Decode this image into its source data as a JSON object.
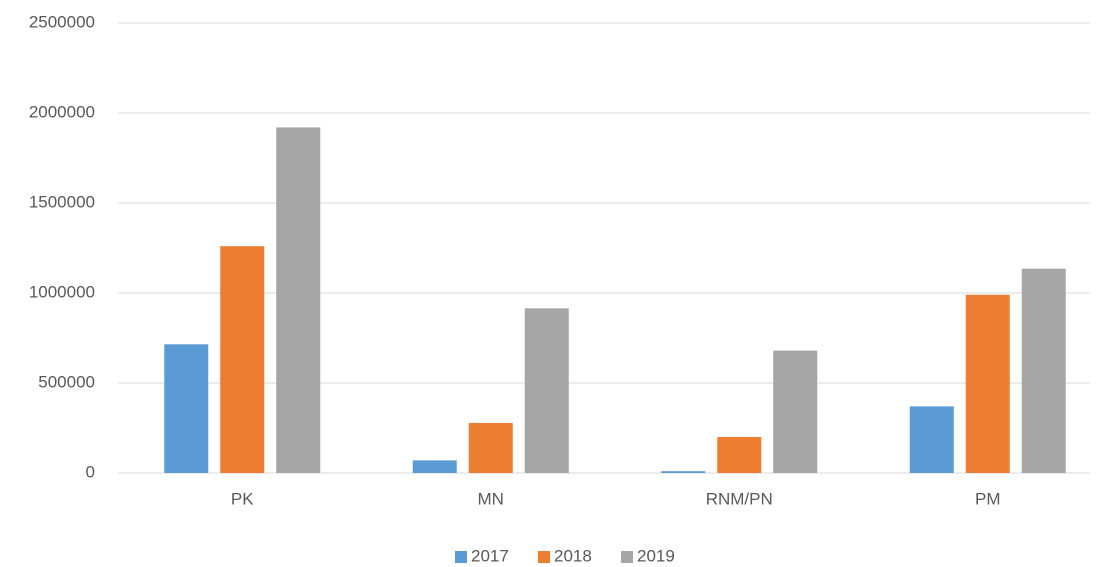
{
  "chart_data": {
    "type": "bar",
    "categories": [
      "PK",
      "MN",
      "RNM/PN",
      "PM"
    ],
    "series": [
      {
        "name": "2017",
        "color": "#5b9bd5",
        "values": [
          715000,
          70000,
          10000,
          370000
        ]
      },
      {
        "name": "2018",
        "color": "#ed7d31",
        "values": [
          1260000,
          278000,
          200000,
          990000
        ]
      },
      {
        "name": "2019",
        "color": "#a5a5a5",
        "values": [
          1920000,
          915000,
          680000,
          1135000
        ]
      }
    ],
    "ylim": [
      0,
      2500000
    ],
    "yticks": [
      0,
      500000,
      1000000,
      1500000,
      2000000,
      2500000
    ],
    "grid": true,
    "legend": "bottom"
  }
}
